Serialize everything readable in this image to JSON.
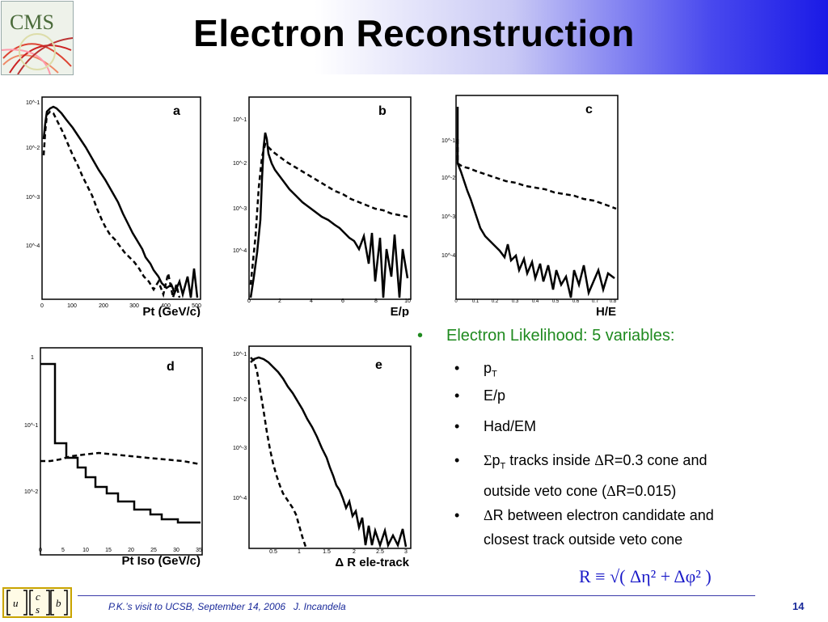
{
  "title": "Electron Reconstruction",
  "logo_text": "CMS",
  "ucsb_letters": [
    "u",
    "c",
    "s",
    "b"
  ],
  "plots": [
    {
      "letter": "a",
      "xlabel": "Pt (GeV/c)",
      "xticks": [
        "0",
        "100",
        "200",
        "300",
        "400",
        "500"
      ],
      "yticks": [
        "10^-1",
        "10^-2",
        "10^-3",
        "10^-4"
      ]
    },
    {
      "letter": "b",
      "xlabel": "E/p",
      "xticks": [
        "0",
        "2",
        "4",
        "6",
        "8",
        "10"
      ],
      "yticks": [
        "10^-1",
        "10^-2",
        "10^-3",
        "10^-4"
      ]
    },
    {
      "letter": "c",
      "xlabel": "H/E",
      "xticks": [
        "0",
        "0.1",
        "0.2",
        "0.3",
        "0.4",
        "0.5",
        "0.6",
        "0.7",
        "0.8"
      ],
      "yticks": [
        "10^-1",
        "10^-2",
        "10^-3",
        "10^-4"
      ]
    },
    {
      "letter": "d",
      "xlabel": "Pt Iso (GeV/c)",
      "xticks": [
        "0",
        "5",
        "10",
        "15",
        "20",
        "25",
        "30",
        "35"
      ],
      "yticks": [
        "1",
        "10^-1",
        "10^-2"
      ]
    },
    {
      "letter": "e",
      "xlabel": "Δ R ele-track",
      "xticks": [
        "0.5",
        "1",
        "1.5",
        "2",
        "2.5",
        "3"
      ],
      "yticks": [
        "10^-1",
        "10^-2",
        "10^-3",
        "10^-4"
      ]
    }
  ],
  "bullets": {
    "main": "Electron Likelihood: 5 variables:",
    "items": {
      "pt_main": "p",
      "pt_sub": "T",
      "ep": "E/p",
      "had": "Had/EM",
      "sum_sym": "Σ",
      "sum_p": "p",
      "sum_sub": "T",
      "sum_rest1": " tracks inside ",
      "sum_delta1": "Δ",
      "sum_rest2": "R=0.3 cone and",
      "sum_line2a": "outside veto cone (",
      "sum_delta2": "Δ",
      "sum_line2b": "R=0.015)",
      "dr_delta": "Δ",
      "dr_line1": "R between electron candidate and",
      "dr_line2": "closest track outside veto cone"
    }
  },
  "formula": "R ≡ √( Δη² + Δφ² )",
  "footer": "P.K.’s visit to UCSB, September 14, 2006   J. Incandela",
  "page_number": "14",
  "colors": {
    "bullet_green": "#1f8a1f",
    "formula_blue": "#1a1ac8",
    "footer_blue": "#1a2a9a",
    "header_blue": "#1a1ae6"
  }
}
